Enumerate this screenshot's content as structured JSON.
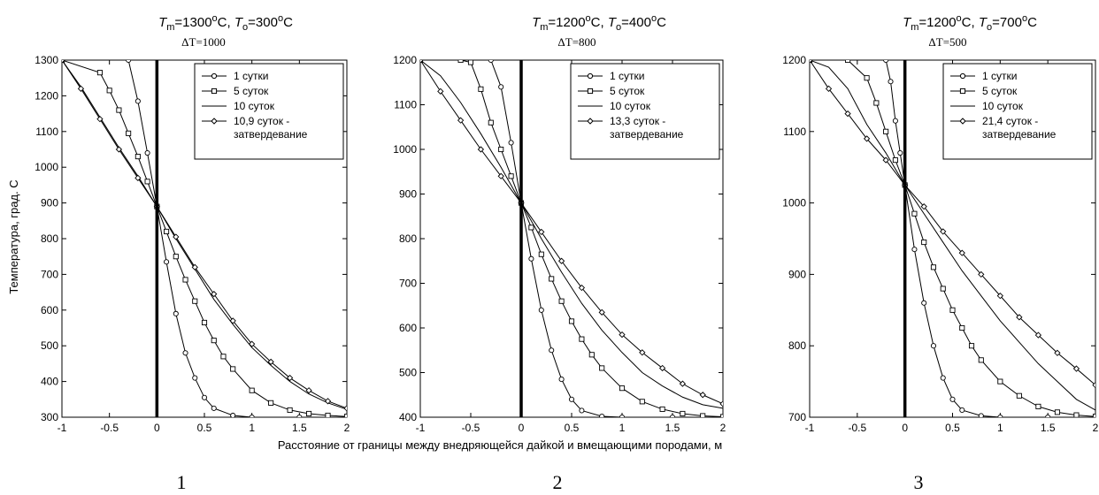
{
  "figure": {
    "ylabel": "Температура, град. С",
    "xlabel": "Расстояние от границы между внедряющейся дайкой и вмещающими породами, м"
  },
  "chart_data": [
    {
      "type": "line",
      "panel_number": "1",
      "title": {
        "T_sym": "T",
        "m_sub": "m",
        "m_val": "=1300",
        "o_sub": "o",
        "o_val": "=300",
        "deg": "o",
        "unit": "C",
        "sep": ", "
      },
      "delta_label": "ΔT=1000",
      "xlim": [
        -1,
        2
      ],
      "ylim": [
        300,
        1300
      ],
      "xticks": [
        "-1",
        "-0.5",
        "0",
        "0.5",
        "1",
        "1.5",
        "2"
      ],
      "yticks": [
        "300",
        "400",
        "500",
        "600",
        "700",
        "800",
        "900",
        "1000",
        "1100",
        "1200",
        "1300"
      ],
      "T_magma": 1300,
      "T_host": 300,
      "T_contact": 890,
      "legend_position": "top-right",
      "series": [
        {
          "name": "1 сутки",
          "marker": "circle",
          "x": [
            -1,
            -0.3,
            -0.2,
            -0.1,
            0,
            0.1,
            0.2,
            0.3,
            0.4,
            0.5,
            0.6,
            0.8,
            1.0,
            1.5,
            2.0
          ],
          "y": [
            1300,
            1300,
            1185,
            1040,
            890,
            735,
            590,
            480,
            410,
            355,
            325,
            305,
            300,
            300,
            300
          ]
        },
        {
          "name": "5 суток",
          "marker": "square",
          "x": [
            -1,
            -0.6,
            -0.5,
            -0.4,
            -0.3,
            -0.2,
            -0.1,
            0,
            0.1,
            0.2,
            0.3,
            0.4,
            0.5,
            0.6,
            0.7,
            0.8,
            1.0,
            1.2,
            1.4,
            1.6,
            1.8,
            2.0
          ],
          "y": [
            1300,
            1265,
            1215,
            1160,
            1095,
            1030,
            960,
            890,
            820,
            750,
            685,
            625,
            565,
            515,
            470,
            435,
            375,
            340,
            320,
            310,
            305,
            302
          ]
        },
        {
          "name": "10 суток",
          "marker": "none",
          "x": [
            -1,
            -0.8,
            -0.6,
            -0.4,
            -0.2,
            0,
            0.2,
            0.4,
            0.6,
            0.8,
            1.0,
            1.2,
            1.4,
            1.6,
            1.8,
            2.0
          ],
          "y": [
            1300,
            1225,
            1140,
            1055,
            975,
            890,
            800,
            715,
            630,
            560,
            495,
            445,
            400,
            365,
            340,
            322
          ]
        },
        {
          "name": "10,9 суток -\nзатвердевание",
          "marker": "diamond",
          "x": [
            -1,
            -0.8,
            -0.6,
            -0.4,
            -0.2,
            0,
            0.2,
            0.4,
            0.6,
            0.8,
            1.0,
            1.2,
            1.4,
            1.6,
            1.8,
            2.0
          ],
          "y": [
            1300,
            1220,
            1135,
            1050,
            970,
            890,
            805,
            720,
            645,
            570,
            505,
            455,
            410,
            375,
            345,
            325
          ]
        }
      ]
    },
    {
      "type": "line",
      "panel_number": "2",
      "title": {
        "T_sym": "T",
        "m_sub": "m",
        "m_val": "=1200",
        "o_sub": "o",
        "o_val": "=400",
        "deg": "o",
        "unit": "C",
        "sep": ", "
      },
      "delta_label": "ΔT=800",
      "xlim": [
        -1,
        2
      ],
      "ylim": [
        400,
        1200
      ],
      "xticks": [
        "-1",
        "-0.5",
        "0",
        "0.5",
        "1",
        "1.5",
        "2"
      ],
      "yticks": [
        "400",
        "500",
        "600",
        "700",
        "800",
        "900",
        "1000",
        "1100",
        "1200"
      ],
      "T_magma": 1200,
      "T_host": 400,
      "T_contact": 880,
      "legend_position": "top-right",
      "series": [
        {
          "name": "1 сутки",
          "marker": "circle",
          "x": [
            -1,
            -0.3,
            -0.2,
            -0.1,
            0,
            0.1,
            0.2,
            0.3,
            0.4,
            0.5,
            0.6,
            0.8,
            1.0,
            1.5,
            2.0
          ],
          "y": [
            1200,
            1200,
            1140,
            1015,
            880,
            755,
            640,
            550,
            485,
            440,
            415,
            402,
            400,
            400,
            400
          ]
        },
        {
          "name": "5 суток",
          "marker": "square",
          "x": [
            -1,
            -0.6,
            -0.5,
            -0.4,
            -0.3,
            -0.2,
            -0.1,
            0,
            0.1,
            0.2,
            0.3,
            0.4,
            0.5,
            0.6,
            0.7,
            0.8,
            1.0,
            1.2,
            1.4,
            1.6,
            1.8,
            2.0
          ],
          "y": [
            1200,
            1200,
            1195,
            1135,
            1060,
            1000,
            940,
            880,
            825,
            765,
            710,
            660,
            615,
            575,
            540,
            510,
            465,
            435,
            418,
            408,
            403,
            401
          ]
        },
        {
          "name": "10 суток",
          "marker": "none",
          "x": [
            -1,
            -0.8,
            -0.6,
            -0.4,
            -0.2,
            0,
            0.2,
            0.4,
            0.6,
            0.8,
            1.0,
            1.2,
            1.4,
            1.6,
            1.8,
            2.0
          ],
          "y": [
            1200,
            1165,
            1105,
            1035,
            960,
            880,
            800,
            725,
            655,
            595,
            545,
            500,
            470,
            445,
            428,
            420
          ]
        },
        {
          "name": "13,3 суток -\nзатвердевание",
          "marker": "diamond",
          "x": [
            -1,
            -0.8,
            -0.6,
            -0.4,
            -0.2,
            0,
            0.2,
            0.4,
            0.6,
            0.8,
            1.0,
            1.2,
            1.4,
            1.6,
            1.8,
            2.0
          ],
          "y": [
            1200,
            1130,
            1065,
            1000,
            940,
            880,
            815,
            750,
            690,
            635,
            585,
            545,
            510,
            475,
            450,
            430
          ]
        }
      ]
    },
    {
      "type": "line",
      "panel_number": "3",
      "title": {
        "T_sym": "T",
        "m_sub": "m",
        "m_val": "=1200",
        "o_sub": "o",
        "o_val": "=700",
        "deg": "o",
        "unit": "C",
        "sep": ", "
      },
      "delta_label": "ΔT=500",
      "xlim": [
        -1,
        2
      ],
      "ylim": [
        700,
        1200
      ],
      "xticks": [
        "-1",
        "-0.5",
        "0",
        "0.5",
        "1",
        "1.5",
        "2"
      ],
      "yticks": [
        "700",
        "800",
        "900",
        "1000",
        "1100",
        "1200"
      ],
      "T_magma": 1200,
      "T_host": 700,
      "T_contact": 1025,
      "legend_position": "top-right",
      "series": [
        {
          "name": "1 сутки",
          "marker": "circle",
          "x": [
            -1,
            -0.2,
            -0.15,
            -0.1,
            -0.05,
            0,
            0.1,
            0.2,
            0.3,
            0.4,
            0.5,
            0.6,
            0.8,
            1.0,
            1.5,
            2.0
          ],
          "y": [
            1200,
            1200,
            1170,
            1115,
            1070,
            1025,
            935,
            860,
            800,
            755,
            725,
            710,
            702,
            700,
            700,
            700
          ]
        },
        {
          "name": "5 суток",
          "marker": "square",
          "x": [
            -1,
            -0.6,
            -0.4,
            -0.3,
            -0.2,
            -0.1,
            0,
            0.1,
            0.2,
            0.3,
            0.4,
            0.5,
            0.6,
            0.7,
            0.8,
            1.0,
            1.2,
            1.4,
            1.6,
            1.8,
            2.0
          ],
          "y": [
            1200,
            1200,
            1175,
            1140,
            1100,
            1060,
            1025,
            985,
            945,
            910,
            880,
            850,
            825,
            800,
            780,
            750,
            730,
            715,
            707,
            703,
            701
          ]
        },
        {
          "name": "10 суток",
          "marker": "none",
          "x": [
            -1,
            -0.8,
            -0.6,
            -0.4,
            -0.2,
            0,
            0.2,
            0.4,
            0.6,
            0.8,
            1.0,
            1.2,
            1.4,
            1.6,
            1.8,
            2.0
          ],
          "y": [
            1200,
            1190,
            1160,
            1110,
            1070,
            1025,
            985,
            945,
            905,
            870,
            835,
            805,
            775,
            750,
            725,
            710
          ]
        },
        {
          "name": "21,4 суток -\nзатвердевание",
          "marker": "diamond",
          "x": [
            -1,
            -0.8,
            -0.6,
            -0.4,
            -0.2,
            0,
            0.2,
            0.4,
            0.6,
            0.8,
            1.0,
            1.2,
            1.4,
            1.6,
            1.8,
            2.0
          ],
          "y": [
            1200,
            1160,
            1125,
            1090,
            1060,
            1025,
            995,
            960,
            930,
            900,
            870,
            840,
            815,
            790,
            768,
            745
          ]
        }
      ]
    }
  ]
}
